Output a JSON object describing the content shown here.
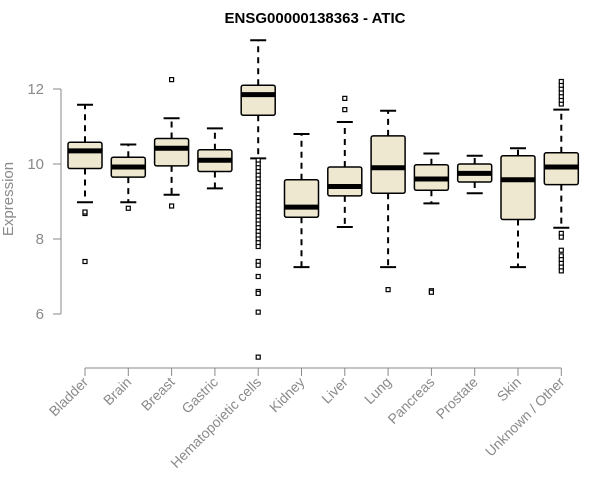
{
  "chart_data": {
    "type": "box",
    "title": "ENSG00000138363 - ATIC",
    "ylabel": "Expression",
    "xlabel": "",
    "ylim": [
      4.6,
      13.6
    ],
    "yticks": [
      6,
      8,
      10,
      12
    ],
    "grid": false,
    "legend": "none",
    "categories": [
      "Bladder",
      "Brain",
      "Breast",
      "Gastric",
      "Hematopoietic cells",
      "Kidney",
      "Liver",
      "Lung",
      "Pancreas",
      "Prostate",
      "Skin",
      "Unknown / Other"
    ],
    "boxes": [
      {
        "q1": 9.88,
        "median": 10.35,
        "q3": 10.58,
        "whisker_low": 8.98,
        "whisker_high": 11.58,
        "outliers": [
          8.68,
          8.72,
          7.4
        ]
      },
      {
        "q1": 9.65,
        "median": 9.92,
        "q3": 10.18,
        "whisker_low": 8.98,
        "whisker_high": 10.52,
        "outliers": [
          8.82
        ]
      },
      {
        "q1": 9.95,
        "median": 10.42,
        "q3": 10.68,
        "whisker_low": 9.18,
        "whisker_high": 11.22,
        "outliers": [
          12.25,
          8.88
        ]
      },
      {
        "q1": 9.8,
        "median": 10.1,
        "q3": 10.38,
        "whisker_low": 9.35,
        "whisker_high": 10.95,
        "outliers": []
      },
      {
        "q1": 11.3,
        "median": 11.85,
        "q3": 12.1,
        "whisker_low": 10.15,
        "whisker_high": 13.3,
        "outliers": [
          10.1,
          10.0,
          9.9,
          9.8,
          9.7,
          9.6,
          9.5,
          9.4,
          9.3,
          9.2,
          9.1,
          9.0,
          8.9,
          8.8,
          8.7,
          8.6,
          8.5,
          8.4,
          8.3,
          8.2,
          8.1,
          8.0,
          7.9,
          7.8,
          7.4,
          7.3,
          7.0,
          6.6,
          6.55,
          6.05,
          4.85
        ]
      },
      {
        "q1": 8.58,
        "median": 8.85,
        "q3": 9.58,
        "whisker_low": 7.25,
        "whisker_high": 10.8,
        "outliers": []
      },
      {
        "q1": 9.15,
        "median": 9.4,
        "q3": 9.92,
        "whisker_low": 8.32,
        "whisker_high": 11.12,
        "outliers": [
          11.45,
          11.75
        ]
      },
      {
        "q1": 9.22,
        "median": 9.9,
        "q3": 10.75,
        "whisker_low": 7.25,
        "whisker_high": 11.42,
        "outliers": [
          6.65
        ]
      },
      {
        "q1": 9.3,
        "median": 9.6,
        "q3": 9.98,
        "whisker_low": 8.95,
        "whisker_high": 10.28,
        "outliers": [
          6.62,
          6.58
        ]
      },
      {
        "q1": 9.52,
        "median": 9.75,
        "q3": 10.0,
        "whisker_low": 9.22,
        "whisker_high": 10.22,
        "outliers": []
      },
      {
        "q1": 8.52,
        "median": 9.58,
        "q3": 10.22,
        "whisker_low": 7.25,
        "whisker_high": 10.42,
        "outliers": []
      },
      {
        "q1": 9.45,
        "median": 9.92,
        "q3": 10.3,
        "whisker_low": 8.3,
        "whisker_high": 11.45,
        "outliers": [
          11.6,
          11.7,
          11.8,
          11.9,
          12.0,
          12.1,
          12.2,
          8.15,
          8.05,
          7.7,
          7.55,
          7.45,
          7.35,
          7.25,
          7.15
        ]
      }
    ],
    "colors": {
      "box_fill": "#efe8d0",
      "box_stroke": "#000000",
      "axis": "#8a8a8a"
    }
  }
}
